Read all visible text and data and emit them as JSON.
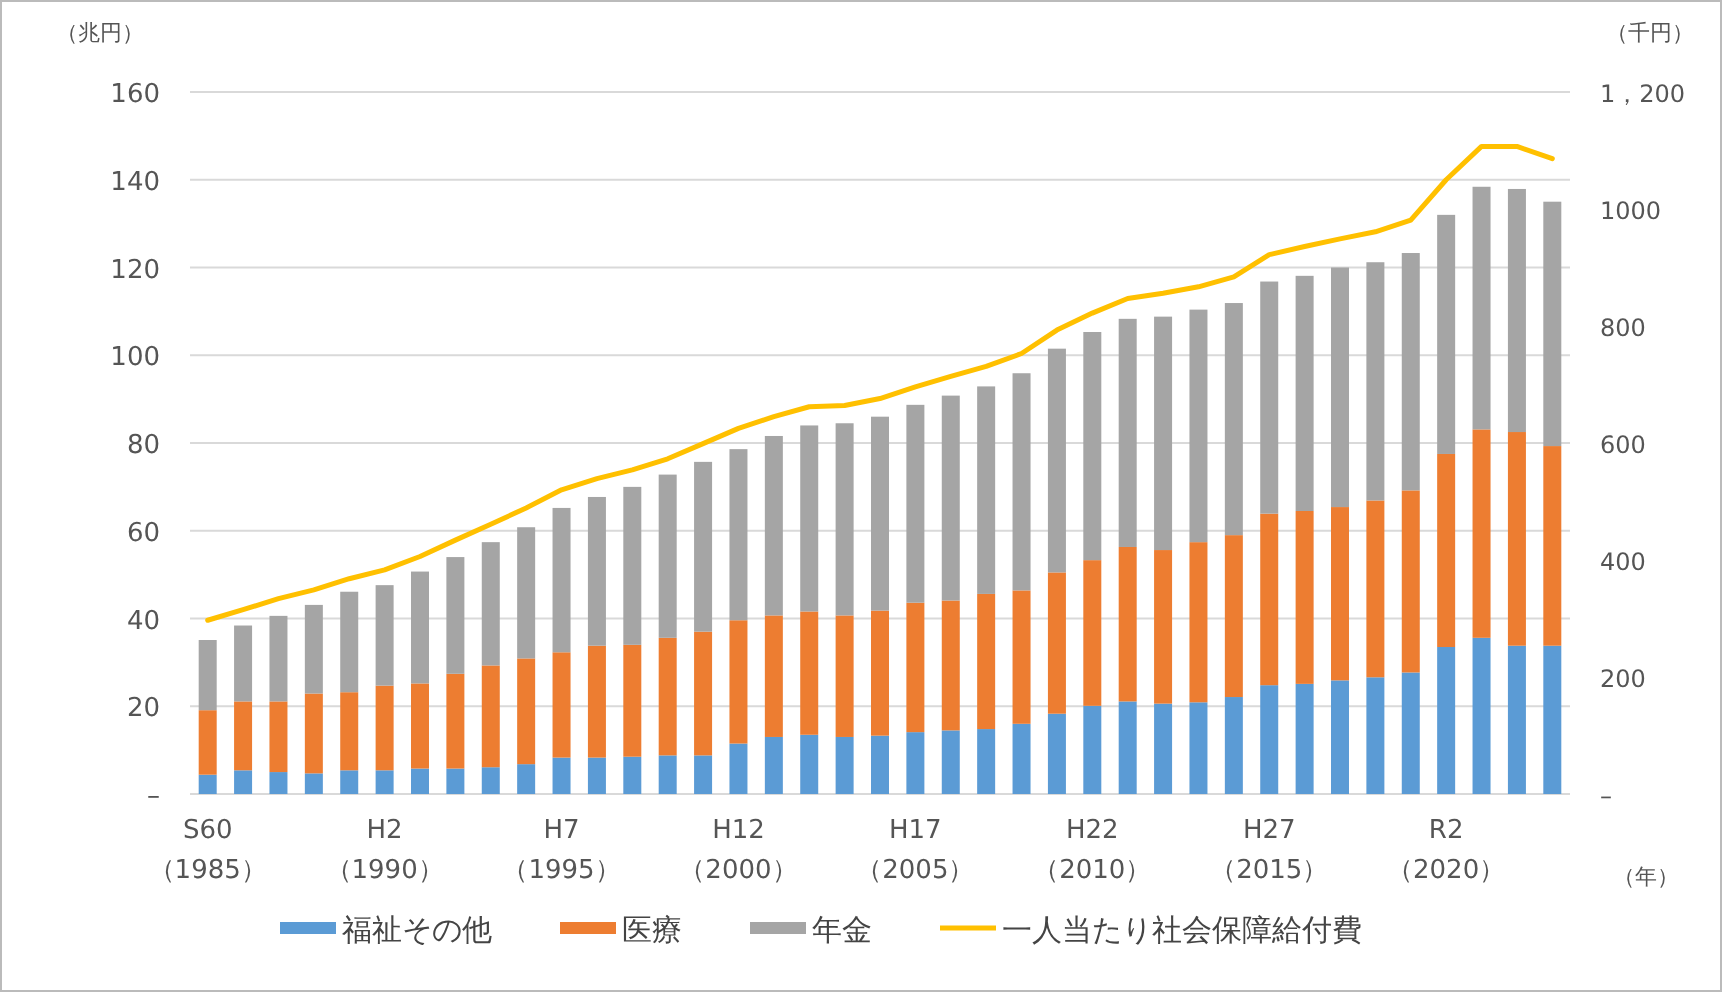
{
  "chart_data": {
    "type": "bar",
    "stacked": true,
    "ylabel": "（兆円）",
    "y2label": "（千円）",
    "xlabel": "（年）",
    "categories": [
      "S60\n（1985）",
      null,
      null,
      null,
      null,
      "H2\n（1990）",
      null,
      null,
      null,
      null,
      "H7\n（1995）",
      null,
      null,
      null,
      null,
      "H12\n（2000）",
      null,
      null,
      null,
      null,
      "H17\n（2005）",
      null,
      null,
      null,
      null,
      "H22\n（2010）",
      null,
      null,
      null,
      null,
      "H27\n（2015）",
      null,
      null,
      null,
      null,
      "R2\n（2020）",
      null,
      null,
      null
    ],
    "series": [
      {
        "name": "福祉その他",
        "color": "#5b9bd5",
        "values": [
          4.4,
          5.4,
          5.0,
          4.7,
          5.4,
          5.4,
          5.8,
          5.8,
          6.1,
          6.8,
          8.3,
          8.3,
          8.5,
          8.8,
          8.8,
          11.5,
          13.0,
          13.5,
          13.0,
          13.3,
          14.1,
          14.5,
          14.8,
          16.0,
          18.3,
          20.1,
          21.1,
          20.6,
          20.9,
          22.1,
          24.8,
          25.1,
          25.9,
          26.6,
          27.7,
          33.5,
          35.6,
          33.8,
          33.8
        ]
      },
      {
        "name": "医療",
        "color": "#ed7d31",
        "values": [
          14.7,
          15.7,
          16.1,
          18.2,
          17.8,
          19.3,
          19.4,
          21.6,
          23.2,
          24.1,
          24.0,
          25.5,
          25.5,
          26.8,
          28.2,
          28.1,
          27.7,
          28.1,
          27.7,
          28.5,
          29.5,
          29.6,
          30.8,
          30.4,
          32.2,
          33.2,
          35.2,
          35.0,
          36.5,
          36.9,
          39.1,
          39.4,
          39.5,
          40.3,
          41.5,
          44.0,
          47.5,
          48.7,
          45.5
        ]
      },
      {
        "name": "年金",
        "color": "#a5a5a5",
        "values": [
          16.0,
          17.3,
          19.5,
          20.2,
          22.9,
          22.9,
          25.5,
          26.6,
          28.1,
          29.9,
          32.9,
          33.9,
          36.0,
          37.2,
          38.7,
          39.0,
          40.9,
          42.4,
          43.8,
          44.2,
          45.1,
          46.7,
          47.3,
          49.5,
          51.0,
          52.0,
          52.0,
          53.2,
          53.0,
          52.9,
          52.9,
          53.6,
          54.6,
          54.3,
          54.1,
          54.5,
          55.3,
          55.4,
          55.7
        ]
      },
      {
        "name": "一人当たり社会保障給付費",
        "color": "#ffc000",
        "type": "line",
        "axis": "y2",
        "values": [
          297,
          315,
          334,
          349,
          368,
          383,
          406,
          434,
          461,
          489,
          520,
          539,
          554,
          573,
          599,
          625,
          645,
          662,
          664,
          676,
          696,
          714,
          731,
          753,
          793,
          822,
          847,
          856,
          867,
          884,
          922,
          936,
          949,
          961,
          981,
          1050,
          1107,
          1107,
          1086
        ]
      }
    ],
    "ylim": [
      0,
      160
    ],
    "yticks": [
      {
        "value": 0,
        "label": "–"
      },
      20,
      40,
      60,
      80,
      100,
      120,
      140,
      160
    ],
    "y2lim": [
      0,
      1200
    ],
    "y2ticks": [
      {
        "value": 0,
        "label": "–"
      },
      200,
      400,
      600,
      800,
      1000,
      {
        "value": 1200,
        "label": "1，200"
      }
    ],
    "grid": "y",
    "legend": "bottom"
  }
}
